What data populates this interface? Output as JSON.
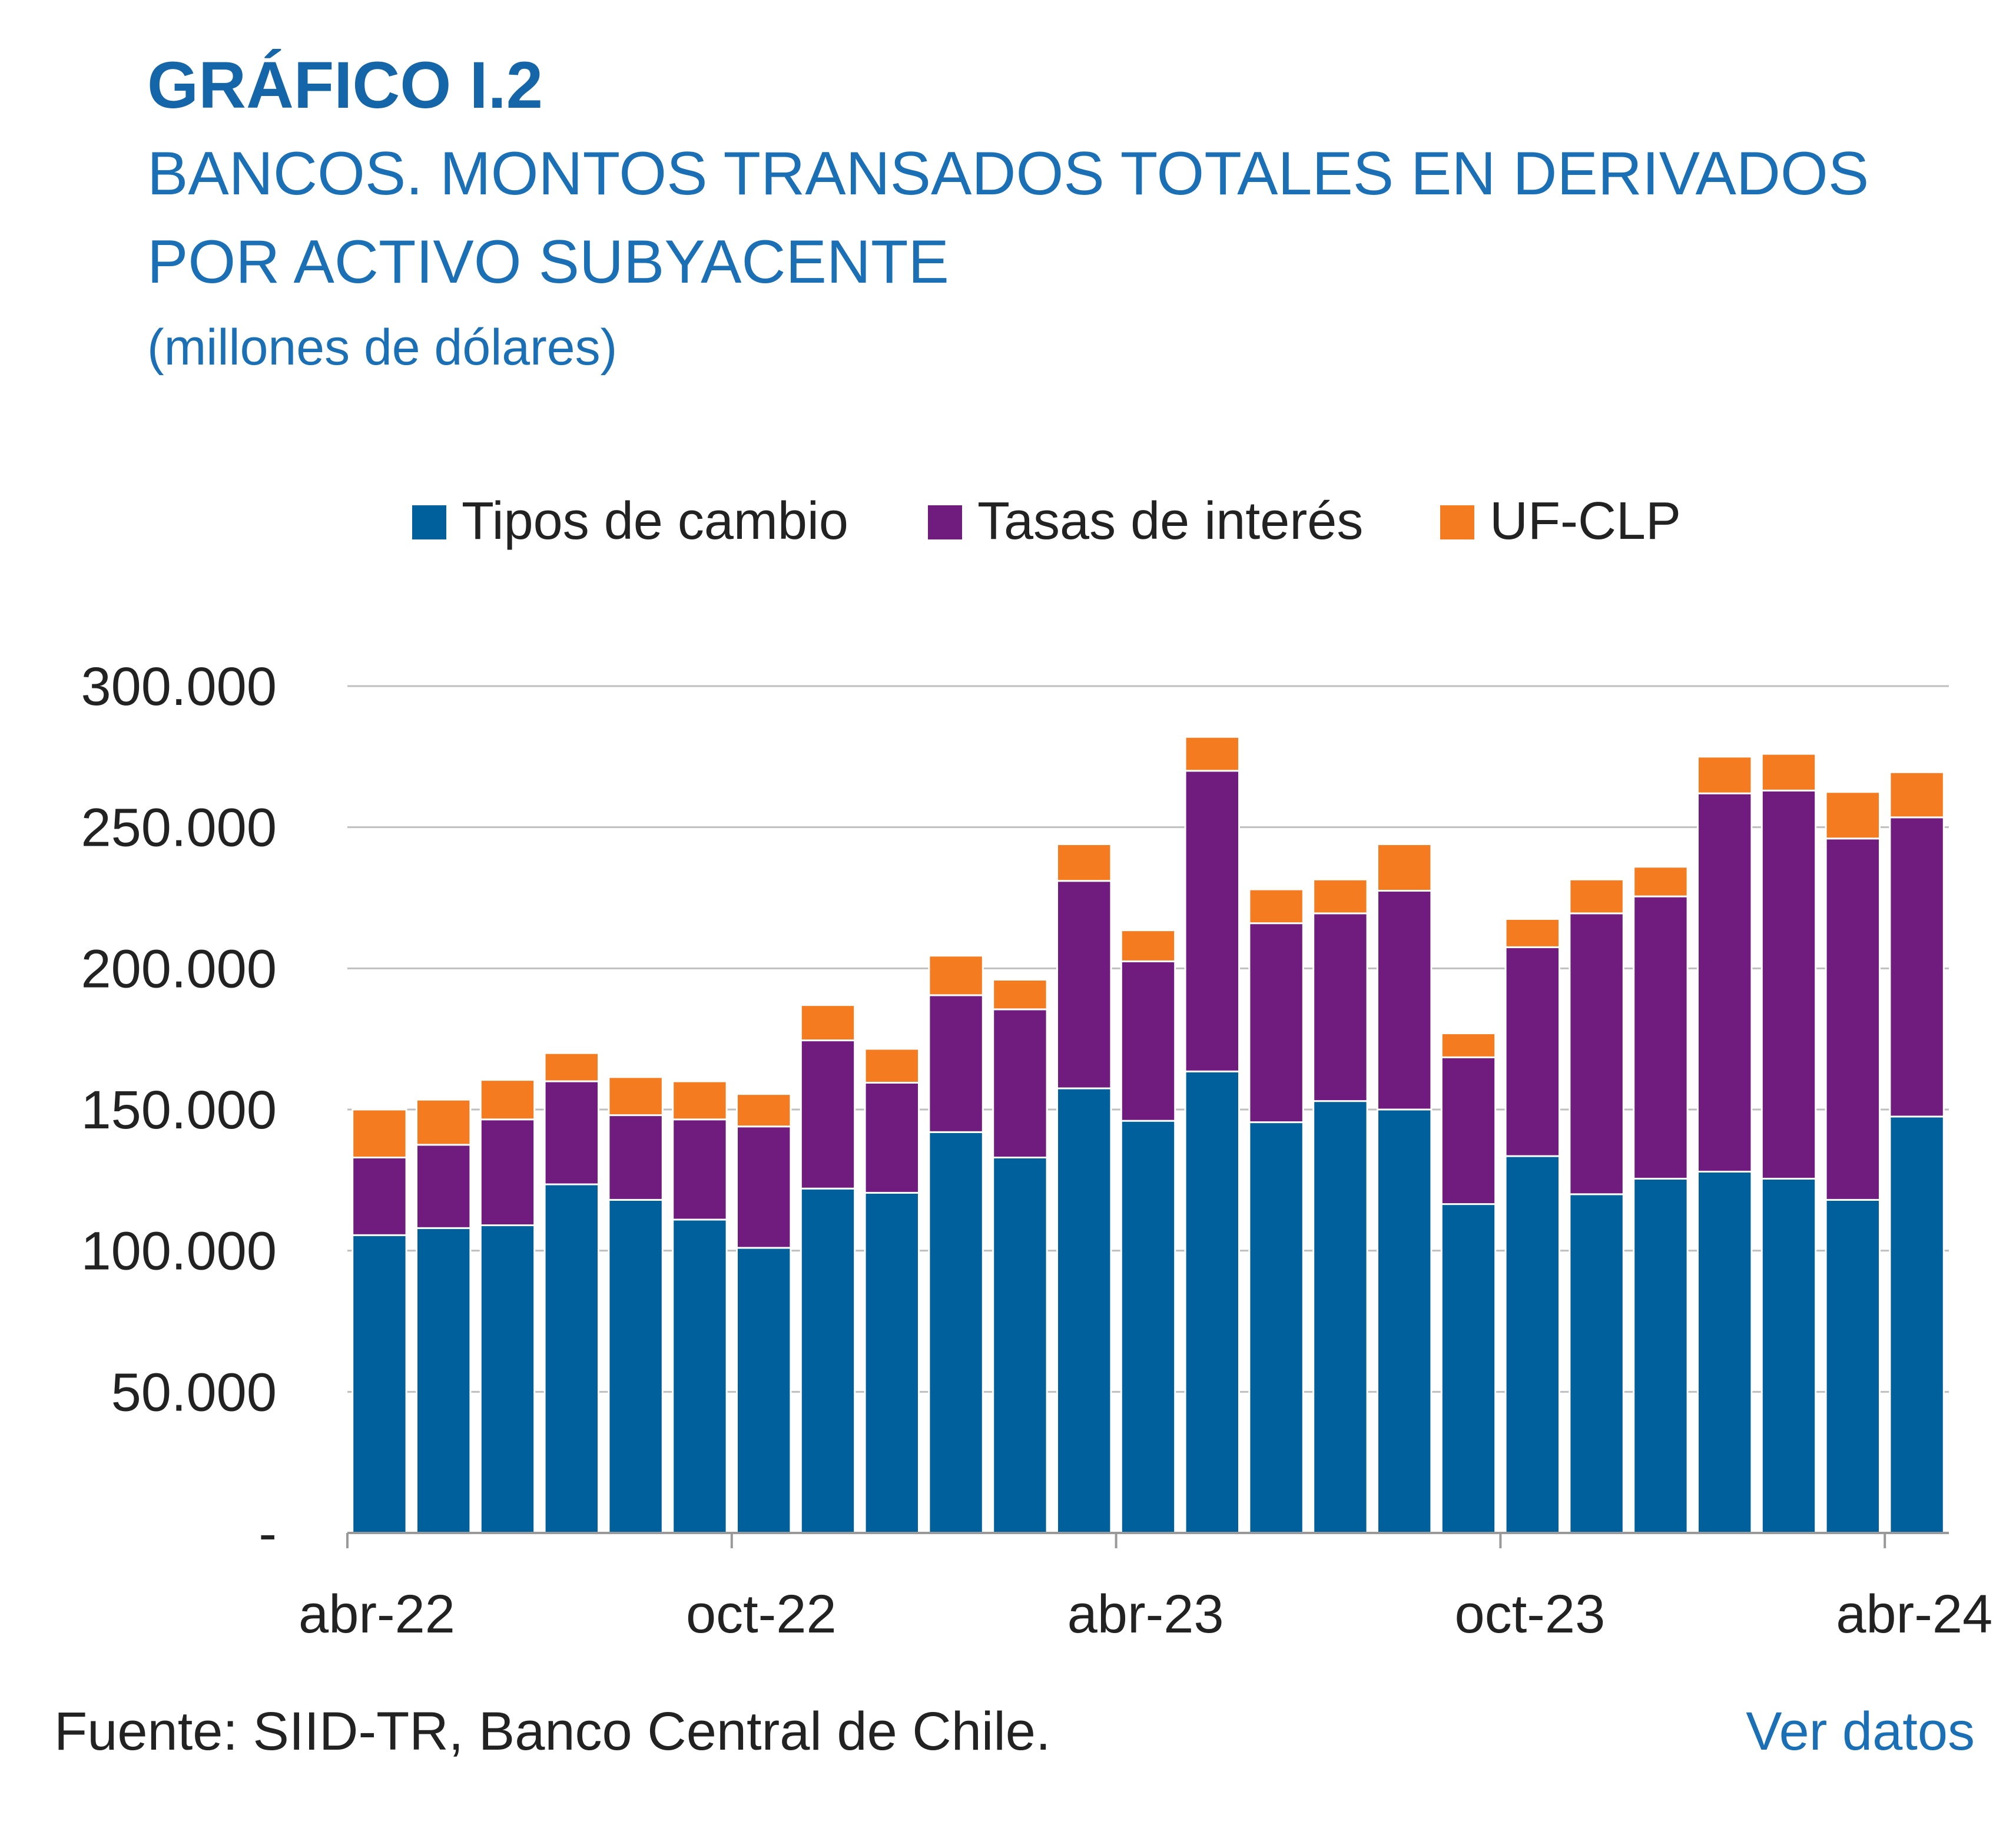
{
  "header": {
    "chart_number": "GRÁFICO I.2",
    "title_line1": "BANCOS. MONTOS TRANSADOS TOTALES EN DERIVADOS",
    "title_line2": "POR ACTIVO SUBYACENTE",
    "units": "(millones de dólares)"
  },
  "footer": {
    "source": "Fuente: SIID-TR, Banco Central de Chile.",
    "link_label": "Ver datos"
  },
  "colors": {
    "tipos_de_cambio": "#00609c",
    "tasas_de_interes": "#701c7f",
    "uf_clp": "#f47b20",
    "title": "#1566a8",
    "gridline": "#bfbfbf"
  },
  "chart_data": {
    "type": "bar",
    "stacked": true,
    "title": "BANCOS. MONTOS TRANSADOS TOTALES EN DERIVADOS POR ACTIVO SUBYACENTE",
    "ylabel": "millones de dólares",
    "xlabel": "",
    "ylim": [
      0,
      300000
    ],
    "y_ticks": [
      0,
      50000,
      100000,
      150000,
      200000,
      250000,
      300000
    ],
    "y_tick_labels": [
      "-",
      "50.000",
      "100.000",
      "150.000",
      "200.000",
      "250.000",
      "300.000"
    ],
    "x_tick_labels": [
      {
        "label": "abr-22",
        "index": 0
      },
      {
        "label": "oct-22",
        "index": 6
      },
      {
        "label": "abr-23",
        "index": 12
      },
      {
        "label": "oct-23",
        "index": 18
      },
      {
        "label": "abr-24",
        "index": 24
      }
    ],
    "categories": [
      "abr-22",
      "may-22",
      "jun-22",
      "jul-22",
      "ago-22",
      "sep-22",
      "oct-22",
      "nov-22",
      "dic-22",
      "ene-23",
      "feb-23",
      "mar-23",
      "abr-23",
      "may-23",
      "jun-23",
      "jul-23",
      "ago-23",
      "sep-23",
      "oct-23",
      "nov-23",
      "dic-23",
      "ene-24",
      "feb-24",
      "mar-24",
      "abr-24"
    ],
    "series": [
      {
        "name": "Tipos de cambio",
        "values": [
          105500,
          108000,
          109000,
          123500,
          118000,
          111000,
          101000,
          122000,
          120500,
          142000,
          133000,
          157500,
          146000,
          163500,
          145500,
          153000,
          150000,
          116500,
          133500,
          120000,
          125500,
          128000,
          125500,
          118000,
          147500
        ]
      },
      {
        "name": "Tasas de interés",
        "values": [
          27500,
          29500,
          37500,
          36500,
          30000,
          35500,
          43000,
          52500,
          39000,
          48500,
          52500,
          73500,
          56500,
          106500,
          70500,
          66500,
          77500,
          52000,
          74000,
          99500,
          100000,
          134000,
          137500,
          128000,
          106000
        ]
      },
      {
        "name": "UF-CLP",
        "values": [
          17000,
          16000,
          14000,
          10000,
          13500,
          13500,
          11500,
          12500,
          12000,
          14000,
          10500,
          13000,
          11000,
          12000,
          12000,
          12000,
          16500,
          8500,
          10000,
          12000,
          10500,
          13000,
          13000,
          16500,
          16000
        ]
      }
    ],
    "legend_position": "top-center",
    "grid": true
  }
}
